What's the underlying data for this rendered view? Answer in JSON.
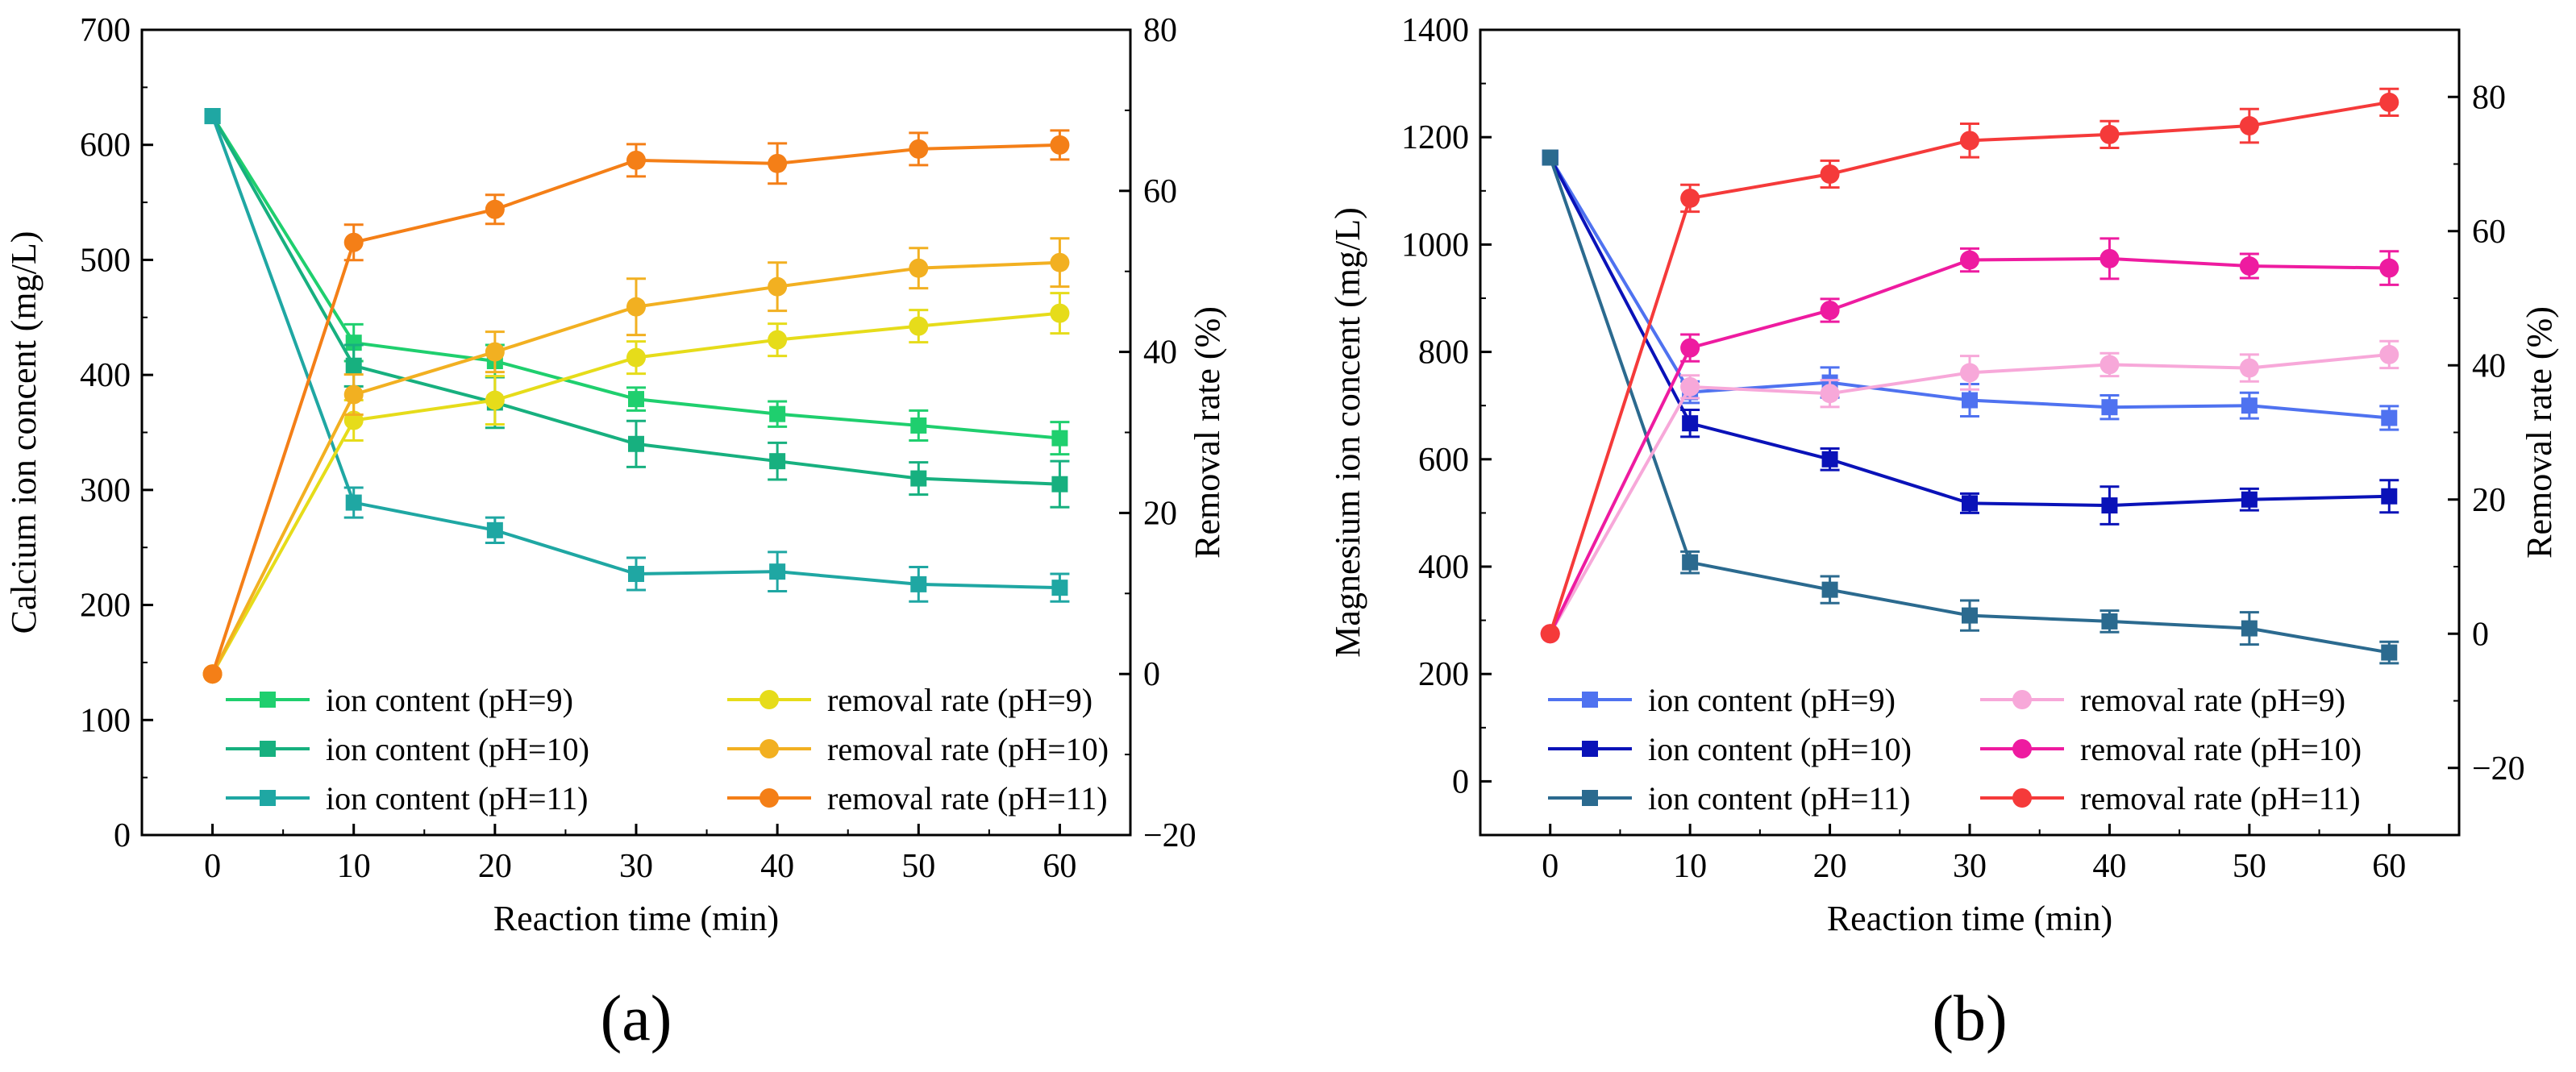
{
  "chart_data": [
    {
      "type": "line",
      "panel_label": "(a)",
      "xlabel": "Reaction time (min)",
      "ylabel_left": "Calcium ion concent (mg/L)",
      "ylabel_right": "Removal rate (%)",
      "x_ticks": [
        "0",
        "10",
        "20",
        "30",
        "40",
        "50",
        "60"
      ],
      "y_left_ticks": [
        "0",
        "100",
        "200",
        "300",
        "400",
        "500",
        "600",
        "700"
      ],
      "y_right_ticks": [
        "−20",
        "0",
        "20",
        "40",
        "60",
        "80"
      ],
      "xlim": [
        -5,
        65
      ],
      "ylim_left": [
        0,
        700
      ],
      "ylim_right": [
        -20,
        80
      ],
      "x": [
        0,
        10,
        20,
        30,
        40,
        50,
        60
      ],
      "legend_position": "bottom-left",
      "series": [
        {
          "name": "ion content (pH=9)",
          "axis": "left",
          "marker": "square",
          "color": "#1fcf6e",
          "values": [
            625,
            428,
            412,
            379,
            366,
            356,
            345
          ],
          "errors": [
            0,
            16,
            14,
            10,
            11,
            13,
            14
          ]
        },
        {
          "name": "ion content (pH=10)",
          "axis": "left",
          "marker": "square",
          "color": "#17b07f",
          "values": [
            625,
            408,
            376,
            340,
            325,
            310,
            305
          ],
          "errors": [
            0,
            18,
            22,
            20,
            16,
            14,
            20
          ]
        },
        {
          "name": "ion content (pH=11)",
          "axis": "left",
          "marker": "square",
          "color": "#1fa7a3",
          "values": [
            625,
            289,
            265,
            227,
            229,
            218,
            215
          ],
          "errors": [
            0,
            13,
            11,
            14,
            17,
            15,
            12
          ]
        },
        {
          "name": "removal rate (pH=9)",
          "axis": "right",
          "marker": "circle",
          "color": "#e6dc1a",
          "values": [
            0,
            31.5,
            34,
            39.3,
            41.5,
            43.2,
            44.8
          ],
          "errors": [
            0,
            2.5,
            3,
            2,
            2,
            2,
            2.5
          ]
        },
        {
          "name": "removal rate (pH=10)",
          "axis": "right",
          "marker": "circle",
          "color": "#f2b021",
          "values": [
            0,
            34.7,
            40,
            45.6,
            48.1,
            50.4,
            51.1
          ],
          "errors": [
            0,
            2.5,
            2.5,
            3.5,
            3,
            2.5,
            3
          ]
        },
        {
          "name": "removal rate (pH=11)",
          "axis": "right",
          "marker": "circle",
          "color": "#f47f17",
          "values": [
            0,
            53.6,
            57.7,
            63.8,
            63.4,
            65.2,
            65.7
          ],
          "errors": [
            0,
            2.2,
            1.8,
            2,
            2.5,
            2,
            1.8
          ]
        }
      ]
    },
    {
      "type": "line",
      "panel_label": "(b)",
      "xlabel": "Reaction time (min)",
      "ylabel_left": "Magnesium ion concent (mg/L)",
      "ylabel_right": "Removal rate (%)",
      "x_ticks": [
        "0",
        "10",
        "20",
        "30",
        "40",
        "50",
        "60"
      ],
      "y_left_ticks": [
        "0",
        "200",
        "400",
        "600",
        "800",
        "1000",
        "1200",
        "1400"
      ],
      "y_right_ticks": [
        "−20",
        "0",
        "20",
        "40",
        "60",
        "80"
      ],
      "xlim": [
        -5,
        65
      ],
      "ylim_left": [
        -100,
        1400
      ],
      "ylim_right": [
        -30,
        90
      ],
      "x": [
        0,
        10,
        20,
        30,
        40,
        50,
        60
      ],
      "legend_position": "bottom-left",
      "series": [
        {
          "name": "ion content (pH=9)",
          "axis": "left",
          "marker": "square",
          "color": "#4f72f0",
          "values": [
            1162,
            725,
            743,
            710,
            697,
            700,
            677
          ],
          "errors": [
            0,
            20,
            28,
            30,
            22,
            24,
            22
          ]
        },
        {
          "name": "ion content (pH=10)",
          "axis": "left",
          "marker": "square",
          "color": "#0a12b8",
          "values": [
            1162,
            667,
            600,
            518,
            514,
            525,
            531
          ],
          "errors": [
            0,
            25,
            20,
            18,
            35,
            20,
            30
          ]
        },
        {
          "name": "ion content (pH=11)",
          "axis": "left",
          "marker": "square",
          "color": "#2b6a8f",
          "values": [
            1162,
            408,
            357,
            309,
            298,
            285,
            240
          ],
          "errors": [
            0,
            20,
            25,
            28,
            20,
            30,
            20
          ]
        },
        {
          "name": "removal rate (pH=9)",
          "axis": "right",
          "marker": "circle",
          "color": "#f7a8d9",
          "values": [
            0,
            36.8,
            35.8,
            38.9,
            40.1,
            39.6,
            41.6
          ],
          "errors": [
            0,
            1.7,
            2,
            2.5,
            1.7,
            2,
            2
          ]
        },
        {
          "name": "removal rate (pH=10)",
          "axis": "right",
          "marker": "circle",
          "color": "#ee1ba0",
          "values": [
            0,
            42.6,
            48.2,
            55.7,
            55.9,
            54.8,
            54.5
          ],
          "errors": [
            0,
            2,
            1.7,
            1.7,
            3,
            1.8,
            2.5
          ]
        },
        {
          "name": "removal rate (pH=11)",
          "axis": "right",
          "marker": "circle",
          "color": "#f53a3a",
          "values": [
            0,
            64.9,
            68.5,
            73.5,
            74.4,
            75.7,
            79.2
          ],
          "errors": [
            0,
            2,
            2,
            2.5,
            2,
            2.5,
            2
          ]
        }
      ]
    }
  ]
}
